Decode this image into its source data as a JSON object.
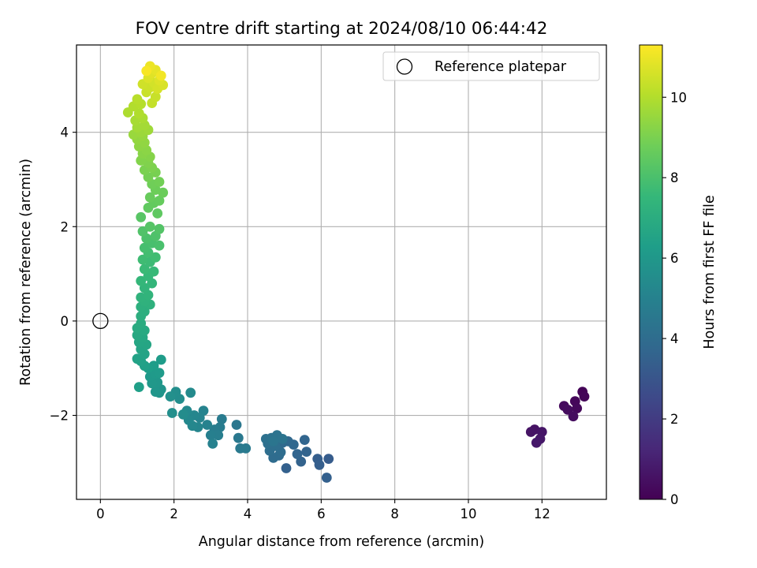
{
  "chart_data": {
    "type": "scatter",
    "title": "FOV centre drift starting at 2024/08/10 06:44:42",
    "xlabel": "Angular distance from reference (arcmin)",
    "ylabel": "Rotation from reference (arcmin)",
    "xlim": [
      -0.65,
      13.75
    ],
    "ylim": [
      -3.78,
      5.85
    ],
    "xticks": [
      0,
      2,
      4,
      6,
      8,
      10,
      12
    ],
    "yticks": [
      -2,
      0,
      2,
      4
    ],
    "grid": true,
    "legend": {
      "position": "top-right",
      "label": "Reference platepar"
    },
    "reference_point": {
      "x": 0,
      "y": 0,
      "marker": "hollow-circle"
    },
    "colorbar": {
      "label": "Hours from first FF file",
      "colormap": "viridis",
      "min": 0,
      "max": 11.3,
      "ticks": [
        0,
        2,
        4,
        6,
        8,
        10
      ]
    },
    "colormap_stops": [
      "#440154",
      "#482878",
      "#3e4989",
      "#31688e",
      "#26828e",
      "#1f9e89",
      "#35b779",
      "#6ece58",
      "#b5de2b",
      "#fde725"
    ],
    "series": [
      {
        "value_name": "hours",
        "points": [
          [
            13.1,
            -1.5,
            0.1
          ],
          [
            13.15,
            -1.6,
            0.15
          ],
          [
            12.9,
            -1.7,
            0.2
          ],
          [
            12.95,
            -1.85,
            0.25
          ],
          [
            12.6,
            -1.8,
            0.3
          ],
          [
            12.7,
            -1.88,
            0.35
          ],
          [
            12.85,
            -2.02,
            0.4
          ],
          [
            11.8,
            -2.3,
            0.55
          ],
          [
            11.7,
            -2.35,
            0.6
          ],
          [
            12.0,
            -2.35,
            0.65
          ],
          [
            11.95,
            -2.5,
            0.7
          ],
          [
            11.85,
            -2.58,
            0.75
          ],
          [
            6.2,
            -2.92,
            3.3
          ],
          [
            5.9,
            -2.92,
            3.35
          ],
          [
            5.95,
            -3.05,
            3.4
          ],
          [
            6.15,
            -3.32,
            3.45
          ],
          [
            5.05,
            -3.12,
            3.5
          ],
          [
            5.45,
            -2.98,
            3.55
          ],
          [
            5.6,
            -2.77,
            3.6
          ],
          [
            5.35,
            -2.82,
            3.65
          ],
          [
            5.55,
            -2.52,
            3.7
          ],
          [
            5.25,
            -2.62,
            3.75
          ],
          [
            5.1,
            -2.55,
            3.8
          ],
          [
            4.95,
            -2.58,
            3.85
          ],
          [
            4.85,
            -2.85,
            3.9
          ],
          [
            4.7,
            -2.9,
            3.95
          ],
          [
            4.9,
            -2.78,
            4.0
          ],
          [
            4.6,
            -2.75,
            4.05
          ],
          [
            4.75,
            -2.65,
            4.1
          ],
          [
            4.55,
            -2.6,
            4.15
          ],
          [
            4.5,
            -2.5,
            4.2
          ],
          [
            4.65,
            -2.48,
            4.25
          ],
          [
            4.8,
            -2.42,
            4.3
          ],
          [
            4.95,
            -2.5,
            4.35
          ],
          [
            4.7,
            -2.55,
            4.4
          ],
          [
            3.7,
            -2.2,
            4.5
          ],
          [
            3.75,
            -2.48,
            4.55
          ],
          [
            3.8,
            -2.7,
            4.6
          ],
          [
            3.95,
            -2.7,
            4.65
          ],
          [
            3.3,
            -2.08,
            4.7
          ],
          [
            3.25,
            -2.25,
            4.75
          ],
          [
            3.1,
            -2.3,
            4.8
          ],
          [
            3.2,
            -2.42,
            4.85
          ],
          [
            3.0,
            -2.42,
            4.9
          ],
          [
            3.05,
            -2.6,
            4.95
          ],
          [
            2.9,
            -2.2,
            5.0
          ],
          [
            2.8,
            -1.9,
            5.05
          ],
          [
            2.7,
            -2.05,
            5.1
          ],
          [
            2.65,
            -2.25,
            5.15
          ],
          [
            2.55,
            -2.0,
            5.2
          ],
          [
            2.5,
            -2.22,
            5.25
          ],
          [
            2.4,
            -2.1,
            5.3
          ],
          [
            2.35,
            -1.9,
            5.35
          ],
          [
            2.45,
            -1.52,
            5.4
          ],
          [
            2.25,
            -1.98,
            5.45
          ],
          [
            2.15,
            -1.65,
            5.5
          ],
          [
            2.05,
            -1.5,
            5.55
          ],
          [
            1.95,
            -1.95,
            5.6
          ],
          [
            1.9,
            -1.6,
            5.65
          ],
          [
            1.6,
            -1.52,
            5.8
          ],
          [
            1.65,
            -1.45,
            5.85
          ],
          [
            1.5,
            -1.5,
            5.9
          ],
          [
            1.55,
            -1.3,
            5.95
          ],
          [
            1.4,
            -1.32,
            6.0
          ],
          [
            1.35,
            -1.18,
            6.05
          ],
          [
            1.5,
            -1.12,
            6.1
          ],
          [
            1.6,
            -1.1,
            6.15
          ],
          [
            1.65,
            -0.82,
            6.2
          ],
          [
            1.45,
            -0.95,
            6.25
          ],
          [
            1.3,
            -1.0,
            6.3
          ],
          [
            1.05,
            -1.4,
            6.35
          ],
          [
            1.2,
            -0.95,
            6.4
          ],
          [
            1.1,
            -0.85,
            6.45
          ],
          [
            1.0,
            -0.8,
            6.5
          ],
          [
            1.2,
            -0.7,
            6.55
          ],
          [
            1.1,
            -0.6,
            6.6
          ],
          [
            1.25,
            -0.5,
            6.65
          ],
          [
            1.05,
            -0.45,
            6.7
          ],
          [
            1.15,
            -0.35,
            6.75
          ],
          [
            1.0,
            -0.3,
            6.8
          ],
          [
            1.2,
            -0.2,
            6.85
          ],
          [
            1.0,
            -0.15,
            6.9
          ],
          [
            1.1,
            -0.05,
            6.95
          ],
          [
            1.1,
            0.1,
            7.05
          ],
          [
            1.2,
            0.2,
            7.1
          ],
          [
            1.1,
            0.3,
            7.15
          ],
          [
            1.35,
            0.35,
            7.2
          ],
          [
            1.2,
            0.42,
            7.25
          ],
          [
            1.1,
            0.5,
            7.3
          ],
          [
            1.3,
            0.55,
            7.35
          ],
          [
            1.2,
            0.7,
            7.4
          ],
          [
            1.4,
            0.8,
            7.45
          ],
          [
            1.1,
            0.85,
            7.5
          ],
          [
            1.3,
            0.95,
            7.55
          ],
          [
            1.45,
            1.05,
            7.6
          ],
          [
            1.2,
            1.1,
            7.65
          ],
          [
            1.35,
            1.25,
            7.7
          ],
          [
            1.15,
            1.3,
            7.75
          ],
          [
            1.5,
            1.35,
            7.8
          ],
          [
            1.3,
            1.45,
            7.85
          ],
          [
            1.2,
            1.55,
            7.9
          ],
          [
            1.4,
            1.65,
            7.95
          ],
          [
            1.6,
            1.6,
            8.0
          ],
          [
            1.25,
            1.75,
            8.05
          ],
          [
            1.5,
            1.8,
            8.1
          ],
          [
            1.15,
            1.9,
            8.15
          ],
          [
            1.6,
            1.95,
            8.2
          ],
          [
            1.35,
            2.0,
            8.25
          ],
          [
            1.1,
            2.2,
            8.3
          ],
          [
            1.55,
            2.28,
            8.45
          ],
          [
            1.3,
            2.4,
            8.5
          ],
          [
            1.45,
            2.5,
            8.55
          ],
          [
            1.6,
            2.55,
            8.6
          ],
          [
            1.35,
            2.62,
            8.65
          ],
          [
            1.7,
            2.72,
            8.7
          ],
          [
            1.5,
            2.78,
            8.75
          ],
          [
            1.4,
            2.9,
            8.8
          ],
          [
            1.6,
            2.95,
            8.85
          ],
          [
            1.3,
            3.05,
            8.9
          ],
          [
            1.5,
            3.15,
            8.95
          ],
          [
            1.2,
            3.2,
            9.0
          ],
          [
            1.4,
            3.25,
            9.05
          ],
          [
            1.3,
            3.35,
            9.1
          ],
          [
            1.1,
            3.4,
            9.15
          ],
          [
            1.35,
            3.48,
            9.2
          ],
          [
            1.15,
            3.55,
            9.25
          ],
          [
            1.25,
            3.62,
            9.3
          ],
          [
            1.05,
            3.7,
            9.35
          ],
          [
            1.2,
            3.78,
            9.4
          ],
          [
            1.0,
            3.85,
            9.45
          ],
          [
            1.15,
            3.92,
            9.5
          ],
          [
            0.9,
            3.95,
            9.55
          ],
          [
            1.1,
            4.0,
            9.6
          ],
          [
            1.3,
            4.05,
            9.65
          ],
          [
            1.0,
            4.1,
            9.7
          ],
          [
            1.2,
            4.15,
            9.75
          ],
          [
            0.95,
            4.25,
            9.8
          ],
          [
            1.15,
            4.3,
            9.85
          ],
          [
            0.75,
            4.42,
            9.9
          ],
          [
            1.05,
            4.4,
            9.95
          ],
          [
            0.9,
            4.55,
            10.0
          ],
          [
            1.1,
            4.6,
            10.05
          ],
          [
            1.0,
            4.7,
            10.1
          ],
          [
            1.4,
            4.62,
            10.3
          ],
          [
            1.5,
            4.75,
            10.35
          ],
          [
            1.25,
            4.85,
            10.4
          ],
          [
            1.35,
            4.95,
            10.45
          ],
          [
            1.15,
            5.02,
            10.5
          ],
          [
            1.45,
            5.05,
            10.55
          ],
          [
            1.55,
            4.92,
            10.6
          ],
          [
            1.7,
            5.0,
            10.65
          ],
          [
            1.3,
            5.15,
            10.7
          ],
          [
            1.6,
            5.1,
            10.75
          ],
          [
            1.4,
            5.25,
            10.8
          ],
          [
            1.5,
            5.32,
            10.9
          ],
          [
            1.35,
            5.4,
            11.0
          ],
          [
            1.65,
            5.2,
            11.1
          ],
          [
            1.25,
            5.3,
            11.2
          ]
        ]
      }
    ]
  }
}
